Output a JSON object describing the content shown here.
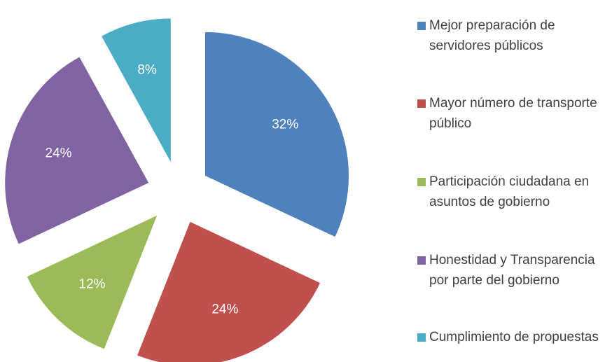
{
  "chart_data": {
    "type": "pie",
    "categories": [
      "Mejor preparación  de servidores públicos",
      "Mayor número de transporte público",
      "Participación ciudadana en asuntos de gobierno",
      "Honestidad y Transparencia por parte del gobierno",
      "Cumplimiento de propuestas"
    ],
    "values": [
      32,
      24,
      12,
      24,
      8
    ],
    "value_labels": [
      "32%",
      "24%",
      "12%",
      "24%",
      "8%"
    ],
    "colors": [
      "#4f81bd",
      "#c0504d",
      "#9bbb59",
      "#8064a2",
      "#4bacc6"
    ],
    "legend": "right"
  }
}
